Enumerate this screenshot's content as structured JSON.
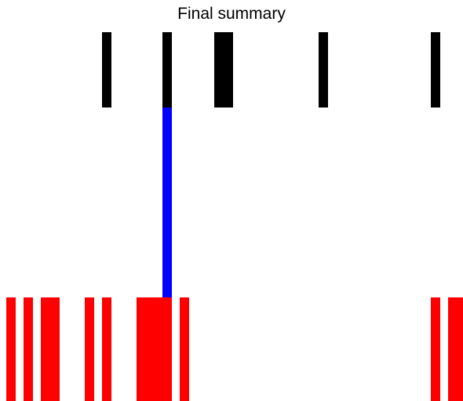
{
  "title": "Final summary",
  "colors": {
    "top_row": "#000000",
    "connector": "#0000ff",
    "bottom_row": "#ff0000",
    "background": "#ffffff"
  }
}
